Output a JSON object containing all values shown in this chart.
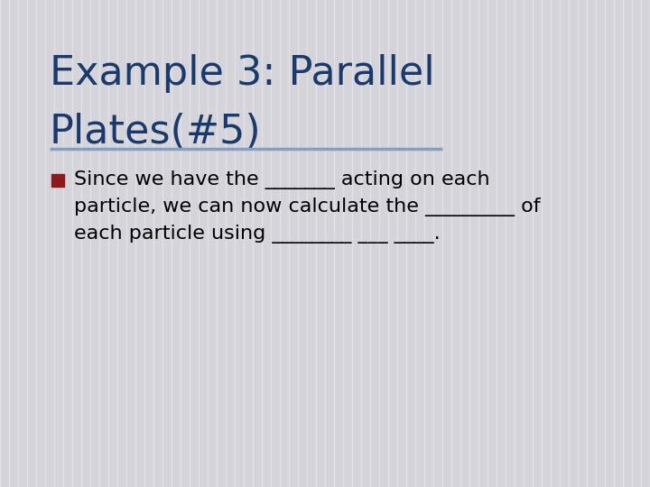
{
  "title_line1": "Example 3: Parallel",
  "title_line2": "Plates(#5)",
  "title_color": "#1a3a6b",
  "title_fontsize": 32,
  "background_color": "#d4d4da",
  "divider_color": "#8a9fbf",
  "bullet_color": "#8b1a1a",
  "bullet_text_color": "#000000",
  "body_fontsize": 16,
  "stripe_color": "#ffffff",
  "stripe_alpha": 0.35,
  "stripe_linewidth": 1.0,
  "n_stripes": 72,
  "bullet_lines": [
    "Since we have the _______ acting on each",
    "particle, we can now calculate the _________ of",
    "each particle using ________ ___ ____."
  ]
}
